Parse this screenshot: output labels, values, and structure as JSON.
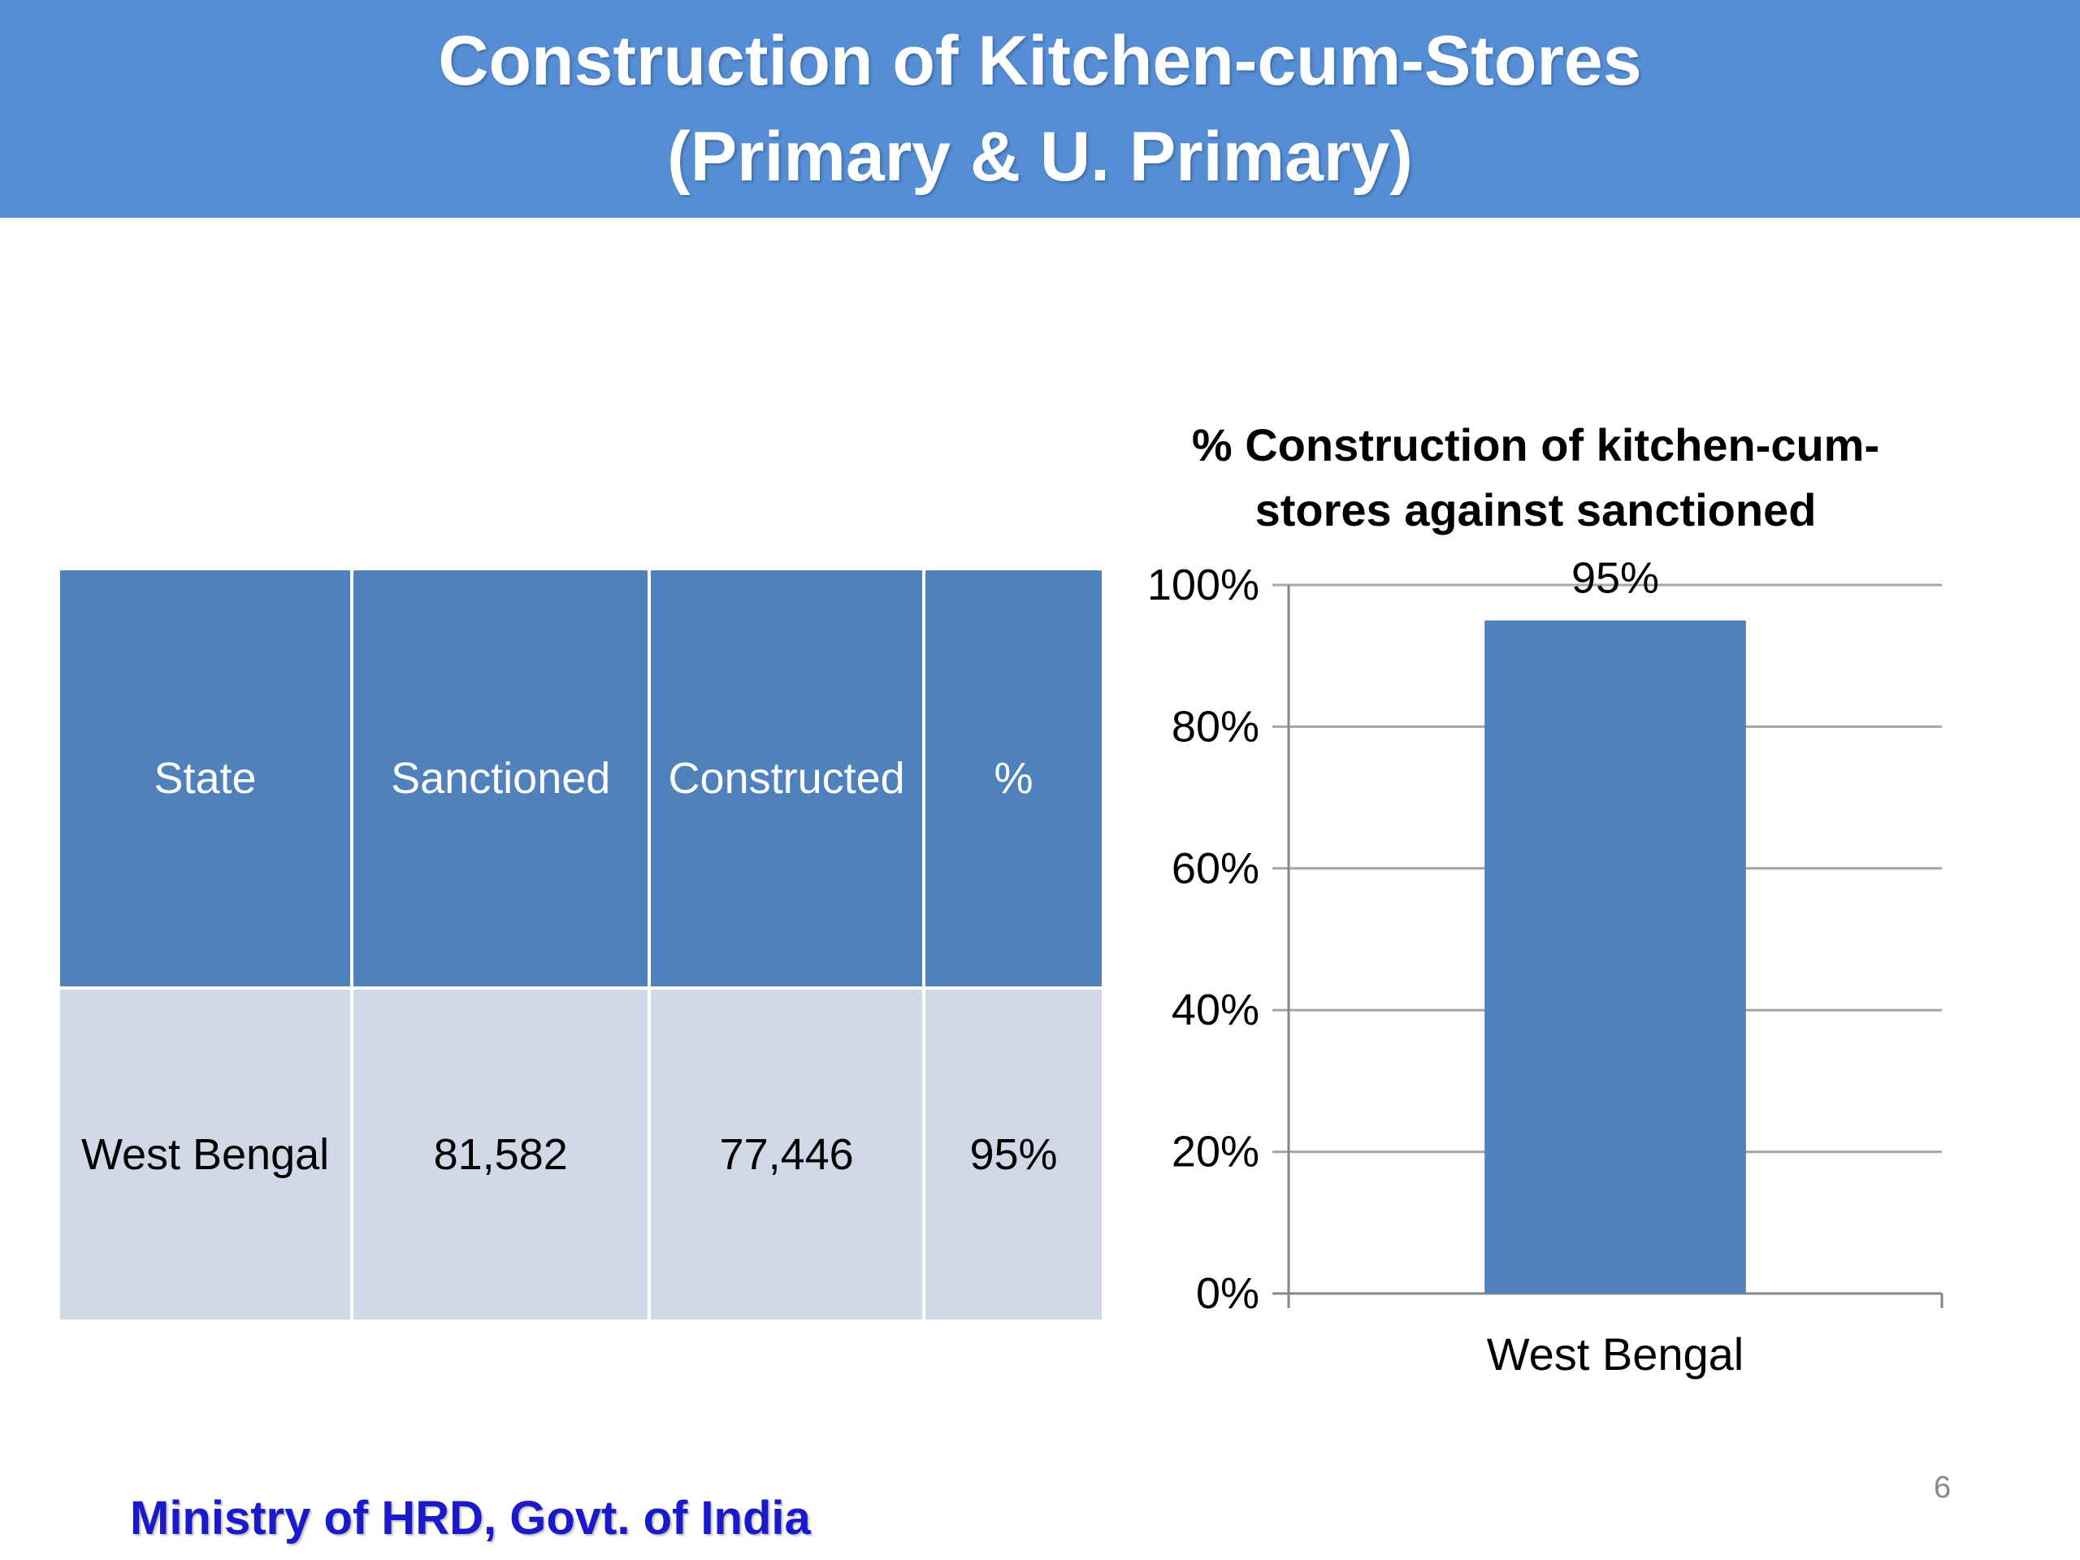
{
  "slide": {
    "title_line1": "Construction of Kitchen-cum-Stores",
    "title_line2": "(Primary & U. Primary)",
    "footer": "Ministry of HRD, Govt. of India",
    "page_number": "6"
  },
  "table": {
    "headers": [
      "State",
      "Sanctioned",
      "Constructed",
      "%"
    ],
    "rows": [
      [
        "West Bengal",
        "81,582",
        "77,446",
        "95%"
      ]
    ]
  },
  "colors": {
    "title_bar": "#558ed5",
    "header_fill": "#4f81bd",
    "row_fill": "#d0d8e8",
    "bar": "#4f81bd",
    "footer_text": "#1a1acc"
  },
  "chart_data": {
    "type": "bar",
    "title_line1": "% Construction of kitchen-cum-",
    "title_line2": "stores against sanctioned",
    "categories": [
      "West Bengal"
    ],
    "values": [
      95
    ],
    "data_labels": [
      "95%"
    ],
    "ylim": [
      0,
      100
    ],
    "yticks": [
      0,
      20,
      40,
      60,
      80,
      100
    ],
    "ytick_labels": [
      "0%",
      "20%",
      "40%",
      "60%",
      "80%",
      "100%"
    ],
    "grid": true,
    "legend": "none"
  }
}
